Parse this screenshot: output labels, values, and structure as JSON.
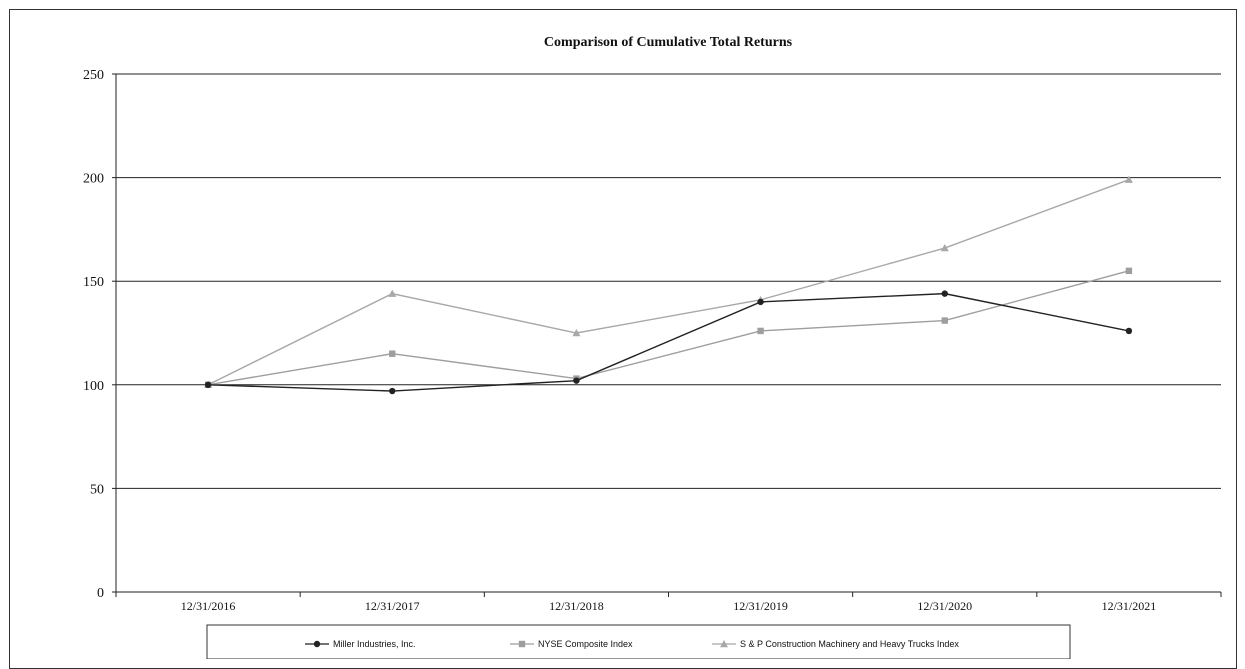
{
  "chart_data": {
    "type": "line",
    "title": "Comparison of Cumulative Total Returns",
    "xlabel": "",
    "ylabel": "",
    "categories": [
      "12/31/2016",
      "12/31/2017",
      "12/31/2018",
      "12/31/2019",
      "12/31/2020",
      "12/31/2021"
    ],
    "ylim": [
      0,
      250
    ],
    "yticks": [
      0,
      50,
      100,
      150,
      200,
      250
    ],
    "grid": "horizontal",
    "legend_position": "bottom",
    "series": [
      {
        "name": "Miller Industries, Inc.",
        "values": [
          100,
          97,
          102,
          140,
          144,
          126
        ],
        "color": "#222222",
        "marker": "circle"
      },
      {
        "name": "NYSE Composite Index",
        "values": [
          100,
          115,
          103,
          126,
          131,
          155
        ],
        "color": "#9e9e9e",
        "marker": "square"
      },
      {
        "name": "S & P Construction Machinery and Heavy Trucks Index",
        "values": [
          100,
          144,
          125,
          141,
          166,
          199
        ],
        "color": "#a8a8a8",
        "marker": "triangle"
      }
    ]
  }
}
